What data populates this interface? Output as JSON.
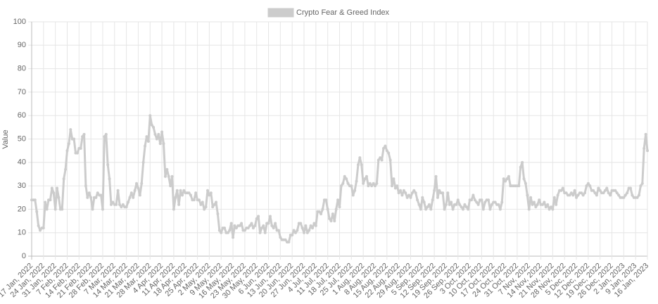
{
  "chart_data": {
    "type": "line",
    "legend": "top",
    "ylabel": "Value",
    "grid": true,
    "ylim": [
      0,
      100
    ],
    "yticks": [
      0,
      10,
      20,
      30,
      40,
      50,
      60,
      70,
      80,
      90,
      100
    ],
    "categories": [
      "17 Jan, 2022",
      null,
      null,
      null,
      null,
      null,
      null,
      "24 Jan, 2022",
      null,
      null,
      null,
      null,
      null,
      null,
      "31 Jan, 2022",
      null,
      null,
      null,
      null,
      null,
      null,
      "7 Feb, 2022",
      null,
      null,
      null,
      null,
      null,
      null,
      "14 Feb, 2022",
      null,
      null,
      null,
      null,
      null,
      null,
      "21 Feb, 2022",
      null,
      null,
      null,
      null,
      null,
      null,
      "28 Feb, 2022",
      null,
      null,
      null,
      null,
      null,
      null,
      "7 Mar, 2022",
      null,
      null,
      null,
      null,
      null,
      null,
      "14 Mar, 2022",
      null,
      null,
      null,
      null,
      null,
      null,
      "21 Mar, 2022",
      null,
      null,
      null,
      null,
      null,
      null,
      "28 Mar, 2022",
      null,
      null,
      null,
      null,
      null,
      null,
      "4 Apr, 2022",
      null,
      null,
      null,
      null,
      null,
      null,
      "11 Apr, 2022",
      null,
      null,
      null,
      null,
      null,
      null,
      "18 Apr, 2022",
      null,
      null,
      null,
      null,
      null,
      null,
      "25 Apr, 2022",
      null,
      null,
      null,
      null,
      null,
      null,
      "2 May, 2022",
      null,
      null,
      null,
      null,
      null,
      null,
      "9 May, 2022",
      null,
      null,
      null,
      null,
      null,
      null,
      "16 May, 2022",
      null,
      null,
      null,
      null,
      null,
      null,
      "23 May, 2022",
      null,
      null,
      null,
      null,
      null,
      null,
      "30 May, 2022",
      null,
      null,
      null,
      null,
      null,
      null,
      "6 Jun, 2022",
      null,
      null,
      null,
      null,
      null,
      null,
      "13 Jun, 2022",
      null,
      null,
      null,
      null,
      null,
      null,
      "20 Jun, 2022",
      null,
      null,
      null,
      null,
      null,
      null,
      "27 Jun, 2022",
      null,
      null,
      null,
      null,
      null,
      null,
      "4 Jul, 2022",
      null,
      null,
      null,
      null,
      null,
      null,
      "11 Jul, 2022",
      null,
      null,
      null,
      null,
      null,
      null,
      "18 Jul, 2022",
      null,
      null,
      null,
      null,
      null,
      null,
      "25 Jul, 2022",
      null,
      null,
      null,
      null,
      null,
      null,
      "1 Aug, 2022",
      null,
      null,
      null,
      null,
      null,
      null,
      "8 Aug, 2022",
      null,
      null,
      null,
      null,
      null,
      null,
      "15 Aug, 2022",
      null,
      null,
      null,
      null,
      null,
      null,
      "22 Aug, 2022",
      null,
      null,
      null,
      null,
      null,
      null,
      "29 Aug, 2022",
      null,
      null,
      null,
      null,
      null,
      null,
      "5 Sep, 2022",
      null,
      null,
      null,
      null,
      null,
      null,
      "12 Sep, 2022",
      null,
      null,
      null,
      null,
      null,
      null,
      "19 Sep, 2022",
      null,
      null,
      null,
      null,
      null,
      null,
      "26 Sep, 2022",
      null,
      null,
      null,
      null,
      null,
      null,
      "3 Oct, 2022",
      null,
      null,
      null,
      null,
      null,
      null,
      "10 Oct, 2022",
      null,
      null,
      null,
      null,
      null,
      null,
      "17 Oct, 2022",
      null,
      null,
      null,
      null,
      null,
      null,
      "24 Oct, 2022",
      null,
      null,
      null,
      null,
      null,
      null,
      "31 Oct, 2022",
      null,
      null,
      null,
      null,
      null,
      null,
      "7 Nov, 2022",
      null,
      null,
      null,
      null,
      null,
      null,
      "14 Nov, 2022",
      null,
      null,
      null,
      null,
      null,
      null,
      "21 Nov, 2022",
      null,
      null,
      null,
      null,
      null,
      null,
      "28 Nov, 2022",
      null,
      null,
      null,
      null,
      null,
      null,
      "5 Dec, 2022",
      null,
      null,
      null,
      null,
      null,
      null,
      "12 Dec, 2022",
      null,
      null,
      null,
      null,
      null,
      null,
      "19 Dec, 2022",
      null,
      null,
      null,
      null,
      null,
      null,
      "26 Dec, 2022",
      null,
      null,
      null,
      null,
      null,
      null,
      "2 Jan, 2023",
      null,
      null,
      null,
      null,
      null,
      null,
      "9 Jan, 2023",
      null,
      null,
      null,
      null,
      null,
      null,
      "16 Jan, 2023"
    ],
    "series": [
      {
        "name": "Crypto Fear & Greed Index",
        "color": "#cccccc",
        "values": [
          24,
          24,
          24,
          19,
          13,
          11,
          12,
          12,
          23,
          20,
          24,
          24,
          29,
          27,
          20,
          29,
          25,
          20,
          20,
          33,
          37,
          45,
          48,
          54,
          50,
          50,
          44,
          44,
          46,
          46,
          51,
          52,
          30,
          25,
          27,
          25,
          20,
          25,
          25,
          27,
          26,
          26,
          20,
          51,
          52,
          39,
          33,
          22,
          23,
          22,
          22,
          28,
          22,
          21,
          22,
          21,
          21,
          23,
          25,
          27,
          25,
          28,
          31,
          29,
          26,
          31,
          40,
          47,
          51,
          49,
          60,
          56,
          55,
          52,
          50,
          52,
          48,
          53,
          48,
          34,
          37,
          34,
          30,
          34,
          20,
          25,
          28,
          22,
          28,
          26,
          28,
          27,
          27,
          27,
          26,
          24,
          24,
          27,
          24,
          24,
          22,
          23,
          20,
          21,
          28,
          26,
          27,
          21,
          22,
          23,
          18,
          11,
          10,
          12,
          12,
          10,
          10,
          11,
          14,
          8,
          13,
          12,
          13,
          13,
          14,
          11,
          11,
          12,
          12,
          13,
          14,
          12,
          13,
          16,
          17,
          10,
          12,
          13,
          10,
          14,
          14,
          17,
          13,
          12,
          14,
          11,
          11,
          8,
          7,
          7,
          7,
          6,
          6,
          9,
          9,
          11,
          10,
          11,
          14,
          14,
          12,
          10,
          13,
          10,
          11,
          13,
          12,
          14,
          13,
          19,
          19,
          18,
          20,
          24,
          24,
          20,
          16,
          15,
          18,
          15,
          20,
          24,
          21,
          30,
          31,
          34,
          33,
          31,
          30,
          30,
          26,
          28,
          32,
          39,
          42,
          39,
          31,
          33,
          34,
          30,
          31,
          30,
          31,
          30,
          31,
          41,
          42,
          41,
          46,
          47,
          45,
          44,
          41,
          30,
          33,
          29,
          30,
          27,
          28,
          26,
          28,
          27,
          25,
          26,
          25,
          27,
          28,
          27,
          24,
          22,
          20,
          25,
          23,
          20,
          21,
          22,
          20,
          24,
          28,
          34,
          25,
          28,
          27,
          27,
          20,
          22,
          27,
          22,
          23,
          20,
          22,
          22,
          24,
          22,
          21,
          20,
          22,
          21,
          20,
          24,
          24,
          26,
          24,
          23,
          22,
          24,
          24,
          20,
          23,
          24,
          24,
          20,
          22,
          23,
          23,
          22,
          22,
          20,
          23,
          33,
          32,
          33,
          34,
          30,
          30,
          30,
          30,
          30,
          30,
          38,
          40,
          33,
          31,
          26,
          20,
          25,
          22,
          23,
          21,
          22,
          24,
          22,
          22,
          23,
          21,
          22,
          20,
          21,
          20,
          25,
          22,
          26,
          28,
          28,
          29,
          27,
          27,
          26,
          26,
          27,
          26,
          28,
          25,
          26,
          27,
          27,
          26,
          27,
          30,
          31,
          30,
          28,
          28,
          27,
          26,
          29,
          28,
          27,
          27,
          28,
          29,
          27,
          26,
          28,
          28,
          28,
          27,
          26,
          25,
          25,
          25,
          26,
          27,
          29,
          29,
          26,
          25,
          25,
          25,
          26,
          30,
          31,
          46,
          52,
          45
        ]
      }
    ]
  }
}
